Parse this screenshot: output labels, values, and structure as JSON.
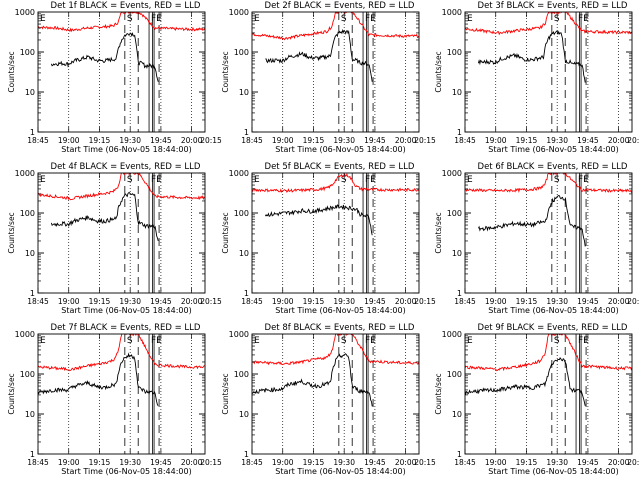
{
  "figure": {
    "ylabel": "Counts/sec",
    "xlabel": "Start Time (06-Nov-05 18:44:00)",
    "background": "#ffffff",
    "axis_color": "#000000",
    "events_color": "#000000",
    "lld_color": "#ff0000"
  },
  "chart_data": [
    {
      "type": "line",
      "title": "Det 1f BLACK = Events, RED = LLD",
      "xlabel": "Start Time (06-Nov-05 18:44:00)",
      "ylabel": "Counts/sec",
      "x_ticks": [
        "18:45",
        "19:00",
        "19:15",
        "19:30",
        "19:45",
        "20:00",
        "20:15"
      ],
      "y_ticks": [
        "1",
        "10",
        "100",
        "1000"
      ],
      "y_scale": "log",
      "ylim": [
        1,
        1000
      ],
      "markers": [
        {
          "label": "E",
          "x": 0.0
        },
        {
          "label": "S",
          "x": 0.52
        },
        {
          "label": "F",
          "x": 0.665
        },
        {
          "label": "E",
          "x": 0.695
        }
      ],
      "series": [
        {
          "x": [
            0.0,
            0.1,
            0.2,
            0.3,
            0.4,
            0.45,
            0.48,
            0.5,
            0.52,
            0.56,
            0.6,
            0.62,
            0.7,
            0.8,
            0.9,
            1.0
          ],
          "y": [
            420,
            400,
            350,
            400,
            430,
            450,
            550,
            1000,
            1000,
            1000,
            1000,
            900,
            400,
            380,
            370,
            370
          ]
        },
        {
          "x": [
            0.08,
            0.15,
            0.18,
            0.22,
            0.3,
            0.35,
            0.4,
            0.44,
            0.47,
            0.48,
            0.5,
            0.52,
            0.55,
            0.58,
            0.6,
            0.63,
            0.64,
            0.7,
            0.72
          ],
          "y": [
            50,
            52,
            50,
            60,
            75,
            62,
            60,
            65,
            68,
            120,
            200,
            260,
            300,
            270,
            55,
            50,
            45,
            45,
            18
          ]
        }
      ]
    },
    {
      "type": "line",
      "title": "Det 2f BLACK = Events, RED = LLD",
      "xlabel": "Start Time (06-Nov-05 18:44:00)",
      "ylabel": "Counts/sec",
      "x_ticks": [
        "18:45",
        "19:00",
        "19:15",
        "19:30",
        "19:45",
        "20:00",
        "20:15"
      ],
      "y_ticks": [
        "1",
        "10",
        "100",
        "1000"
      ],
      "y_scale": "log",
      "ylim": [
        1,
        1000
      ],
      "markers": [
        {
          "label": "E",
          "x": 0.0
        },
        {
          "label": "S",
          "x": 0.52
        },
        {
          "label": "F",
          "x": 0.665
        },
        {
          "label": "E",
          "x": 0.695
        }
      ],
      "series": [
        {
          "x": [
            0.0,
            0.1,
            0.2,
            0.3,
            0.4,
            0.45,
            0.48,
            0.5,
            0.52,
            0.56,
            0.6,
            0.62,
            0.7,
            0.8,
            0.9,
            1.0
          ],
          "y": [
            280,
            250,
            220,
            260,
            300,
            330,
            450,
            1000,
            1000,
            1000,
            1000,
            800,
            270,
            260,
            250,
            250
          ]
        },
        {
          "x": [
            0.08,
            0.15,
            0.18,
            0.22,
            0.3,
            0.35,
            0.4,
            0.44,
            0.47,
            0.48,
            0.5,
            0.52,
            0.55,
            0.58,
            0.6,
            0.63,
            0.64,
            0.7,
            0.72
          ],
          "y": [
            60,
            62,
            60,
            75,
            90,
            72,
            70,
            75,
            80,
            140,
            240,
            300,
            330,
            300,
            65,
            60,
            55,
            50,
            20
          ]
        }
      ]
    },
    {
      "type": "line",
      "title": "Det 3f BLACK = Events, RED = LLD",
      "xlabel": "Start Time (06-Nov-05 18:44:00)",
      "ylabel": "Counts/sec",
      "x_ticks": [
        "18:45",
        "19:00",
        "19:15",
        "19:30",
        "19:45",
        "20:00",
        "20:15"
      ],
      "y_ticks": [
        "1",
        "10",
        "100",
        "1000"
      ],
      "y_scale": "log",
      "ylim": [
        1,
        1000
      ],
      "markers": [
        {
          "label": "E",
          "x": 0.0
        },
        {
          "label": "S",
          "x": 0.52
        },
        {
          "label": "F",
          "x": 0.665
        },
        {
          "label": "E",
          "x": 0.695
        }
      ],
      "series": [
        {
          "x": [
            0.0,
            0.1,
            0.2,
            0.3,
            0.4,
            0.45,
            0.48,
            0.5,
            0.52,
            0.56,
            0.6,
            0.62,
            0.7,
            0.8,
            0.9,
            1.0
          ],
          "y": [
            380,
            340,
            300,
            340,
            380,
            400,
            520,
            1000,
            1000,
            1000,
            1000,
            850,
            330,
            320,
            310,
            310
          ]
        },
        {
          "x": [
            0.08,
            0.15,
            0.18,
            0.22,
            0.3,
            0.35,
            0.4,
            0.44,
            0.47,
            0.48,
            0.5,
            0.52,
            0.55,
            0.58,
            0.6,
            0.63,
            0.64,
            0.7,
            0.72
          ],
          "y": [
            55,
            57,
            55,
            68,
            82,
            66,
            64,
            70,
            74,
            130,
            220,
            280,
            310,
            280,
            60,
            55,
            50,
            48,
            19
          ]
        }
      ]
    },
    {
      "type": "line",
      "title": "Det 4f BLACK = Events, RED = LLD",
      "xlabel": "Start Time (06-Nov-05 18:44:00)",
      "ylabel": "Counts/sec",
      "x_ticks": [
        "18:45",
        "19:00",
        "19:15",
        "19:30",
        "19:45",
        "20:00",
        "20:15"
      ],
      "y_ticks": [
        "1",
        "10",
        "100",
        "1000"
      ],
      "y_scale": "log",
      "ylim": [
        1,
        1000
      ],
      "markers": [
        {
          "label": "E",
          "x": 0.0
        },
        {
          "label": "S",
          "x": 0.52
        },
        {
          "label": "F",
          "x": 0.665
        },
        {
          "label": "E",
          "x": 0.695
        }
      ],
      "series": [
        {
          "x": [
            0.0,
            0.1,
            0.2,
            0.3,
            0.4,
            0.45,
            0.48,
            0.5,
            0.52,
            0.56,
            0.6,
            0.62,
            0.7,
            0.8,
            0.9,
            1.0
          ],
          "y": [
            290,
            260,
            230,
            270,
            310,
            340,
            460,
            1000,
            1000,
            1000,
            1000,
            800,
            260,
            250,
            240,
            240
          ]
        },
        {
          "x": [
            0.08,
            0.15,
            0.18,
            0.22,
            0.3,
            0.35,
            0.4,
            0.44,
            0.47,
            0.48,
            0.5,
            0.52,
            0.55,
            0.58,
            0.6,
            0.63,
            0.64,
            0.7,
            0.72
          ],
          "y": [
            52,
            54,
            52,
            64,
            78,
            64,
            62,
            68,
            72,
            125,
            210,
            270,
            300,
            270,
            58,
            52,
            48,
            46,
            18
          ]
        }
      ]
    },
    {
      "type": "line",
      "title": "Det 5f BLACK = Events, RED = LLD",
      "xlabel": "Start Time (06-Nov-05 18:44:00)",
      "ylabel": "Counts/sec",
      "x_ticks": [
        "18:45",
        "19:00",
        "19:15",
        "19:30",
        "19:45",
        "20:00",
        "20:15"
      ],
      "y_ticks": [
        "1",
        "10",
        "100",
        "1000"
      ],
      "y_scale": "log",
      "ylim": [
        1,
        1000
      ],
      "markers": [
        {
          "label": "E",
          "x": 0.0
        },
        {
          "label": "S",
          "x": 0.52
        },
        {
          "label": "F",
          "x": 0.665
        },
        {
          "label": "E",
          "x": 0.695
        }
      ],
      "series": [
        {
          "x": [
            0.0,
            0.1,
            0.2,
            0.3,
            0.4,
            0.45,
            0.48,
            0.5,
            0.52,
            0.55,
            0.58,
            0.6,
            0.62,
            0.65,
            0.7,
            0.8,
            0.9,
            1.0
          ],
          "y": [
            380,
            370,
            360,
            370,
            390,
            420,
            500,
            650,
            800,
            900,
            850,
            650,
            480,
            400,
            390,
            380,
            380,
            380
          ]
        },
        {
          "x": [
            0.08,
            0.15,
            0.2,
            0.25,
            0.3,
            0.35,
            0.4,
            0.45,
            0.48,
            0.5,
            0.52,
            0.56,
            0.6,
            0.63,
            0.65,
            0.7,
            0.72
          ],
          "y": [
            90,
            95,
            100,
            105,
            115,
            110,
            115,
            130,
            135,
            140,
            145,
            140,
            130,
            120,
            90,
            80,
            30
          ]
        }
      ]
    },
    {
      "type": "line",
      "title": "Det 6f BLACK = Events, RED = LLD",
      "xlabel": "Start Time (06-Nov-05 18:44:00)",
      "ylabel": "Counts/sec",
      "x_ticks": [
        "18:45",
        "19:00",
        "19:15",
        "19:30",
        "19:45",
        "20:00",
        "20:15"
      ],
      "y_ticks": [
        "1",
        "10",
        "100",
        "1000"
      ],
      "y_scale": "log",
      "ylim": [
        1,
        1000
      ],
      "markers": [
        {
          "label": "E",
          "x": 0.0
        },
        {
          "label": "S",
          "x": 0.52
        },
        {
          "label": "F",
          "x": 0.665
        },
        {
          "label": "E",
          "x": 0.695
        }
      ],
      "series": [
        {
          "x": [
            0.0,
            0.1,
            0.2,
            0.3,
            0.4,
            0.45,
            0.48,
            0.5,
            0.52,
            0.56,
            0.6,
            0.62,
            0.7,
            0.8,
            0.9,
            1.0
          ],
          "y": [
            380,
            370,
            360,
            370,
            390,
            420,
            520,
            1000,
            1000,
            1000,
            1000,
            800,
            380,
            370,
            360,
            360
          ]
        },
        {
          "x": [
            0.08,
            0.15,
            0.2,
            0.3,
            0.4,
            0.45,
            0.48,
            0.5,
            0.52,
            0.56,
            0.6,
            0.63,
            0.64,
            0.7,
            0.72
          ],
          "y": [
            40,
            42,
            45,
            55,
            50,
            58,
            60,
            110,
            190,
            260,
            230,
            50,
            45,
            42,
            16
          ]
        }
      ]
    },
    {
      "type": "line",
      "title": "Det 7f BLACK = Events, RED = LLD",
      "xlabel": "Start Time (06-Nov-05 18:44:00)",
      "ylabel": "Counts/sec",
      "x_ticks": [
        "18:45",
        "19:00",
        "19:15",
        "19:30",
        "19:45",
        "20:00",
        "20:15"
      ],
      "y_ticks": [
        "1",
        "10",
        "100",
        "1000"
      ],
      "y_scale": "log",
      "ylim": [
        1,
        1000
      ],
      "markers": [
        {
          "label": "E",
          "x": 0.0
        },
        {
          "label": "S",
          "x": 0.52
        },
        {
          "label": "F",
          "x": 0.665
        },
        {
          "label": "E",
          "x": 0.695
        }
      ],
      "series": [
        {
          "x": [
            0.0,
            0.1,
            0.2,
            0.3,
            0.4,
            0.45,
            0.48,
            0.5,
            0.52,
            0.56,
            0.6,
            0.62,
            0.7,
            0.8,
            0.9,
            1.0
          ],
          "y": [
            150,
            140,
            130,
            160,
            190,
            220,
            350,
            1000,
            1000,
            1000,
            1000,
            700,
            170,
            160,
            150,
            150
          ]
        },
        {
          "x": [
            0.0,
            0.1,
            0.18,
            0.22,
            0.3,
            0.35,
            0.4,
            0.44,
            0.47,
            0.48,
            0.5,
            0.52,
            0.55,
            0.58,
            0.6,
            0.63,
            0.64,
            0.7,
            0.72
          ],
          "y": [
            35,
            40,
            40,
            50,
            60,
            48,
            46,
            52,
            56,
            110,
            200,
            260,
            290,
            260,
            45,
            40,
            36,
            34,
            15
          ]
        }
      ]
    },
    {
      "type": "line",
      "title": "Det 8f BLACK = Events, RED = LLD",
      "xlabel": "Start Time (06-Nov-05 18:44:00)",
      "ylabel": "Counts/sec",
      "x_ticks": [
        "18:45",
        "19:00",
        "19:15",
        "19:30",
        "19:45",
        "20:00",
        "20:15"
      ],
      "y_ticks": [
        "1",
        "10",
        "100",
        "1000"
      ],
      "y_scale": "log",
      "ylim": [
        1,
        1000
      ],
      "markers": [
        {
          "label": "E",
          "x": 0.0
        },
        {
          "label": "S",
          "x": 0.52
        },
        {
          "label": "F",
          "x": 0.665
        },
        {
          "label": "E",
          "x": 0.695
        }
      ],
      "series": [
        {
          "x": [
            0.0,
            0.1,
            0.2,
            0.3,
            0.4,
            0.45,
            0.48,
            0.5,
            0.52,
            0.56,
            0.6,
            0.62,
            0.7,
            0.8,
            0.9,
            1.0
          ],
          "y": [
            200,
            190,
            180,
            200,
            240,
            260,
            380,
            1000,
            1000,
            1000,
            1000,
            750,
            210,
            200,
            190,
            190
          ]
        },
        {
          "x": [
            0.0,
            0.1,
            0.18,
            0.22,
            0.3,
            0.35,
            0.4,
            0.44,
            0.47,
            0.48,
            0.5,
            0.52,
            0.55,
            0.58,
            0.6,
            0.63,
            0.64,
            0.7,
            0.72
          ],
          "y": [
            35,
            40,
            42,
            55,
            65,
            52,
            50,
            56,
            60,
            115,
            210,
            270,
            300,
            270,
            48,
            42,
            38,
            36,
            16
          ]
        }
      ]
    },
    {
      "type": "line",
      "title": "Det 9f BLACK = Events, RED = LLD",
      "xlabel": "Start Time (06-Nov-05 18:44:00)",
      "ylabel": "Counts/sec",
      "x_ticks": [
        "18:45",
        "19:00",
        "19:15",
        "19:30",
        "19:45",
        "20:00",
        "20:15"
      ],
      "y_ticks": [
        "1",
        "10",
        "100",
        "1000"
      ],
      "y_scale": "log",
      "ylim": [
        1,
        1000
      ],
      "markers": [
        {
          "label": "E",
          "x": 0.0
        },
        {
          "label": "S",
          "x": 0.52
        },
        {
          "label": "F",
          "x": 0.665
        },
        {
          "label": "E",
          "x": 0.695
        }
      ],
      "series": [
        {
          "x": [
            0.0,
            0.1,
            0.2,
            0.3,
            0.4,
            0.45,
            0.48,
            0.5,
            0.52,
            0.56,
            0.6,
            0.62,
            0.7,
            0.8,
            0.9,
            1.0
          ],
          "y": [
            150,
            140,
            130,
            150,
            180,
            210,
            330,
            1000,
            1000,
            1000,
            1000,
            700,
            160,
            150,
            140,
            140
          ]
        },
        {
          "x": [
            0.0,
            0.1,
            0.2,
            0.3,
            0.4,
            0.45,
            0.48,
            0.5,
            0.52,
            0.56,
            0.6,
            0.63,
            0.64,
            0.7,
            0.72
          ],
          "y": [
            35,
            38,
            40,
            48,
            45,
            52,
            55,
            105,
            180,
            250,
            220,
            45,
            40,
            38,
            15
          ]
        }
      ]
    }
  ]
}
